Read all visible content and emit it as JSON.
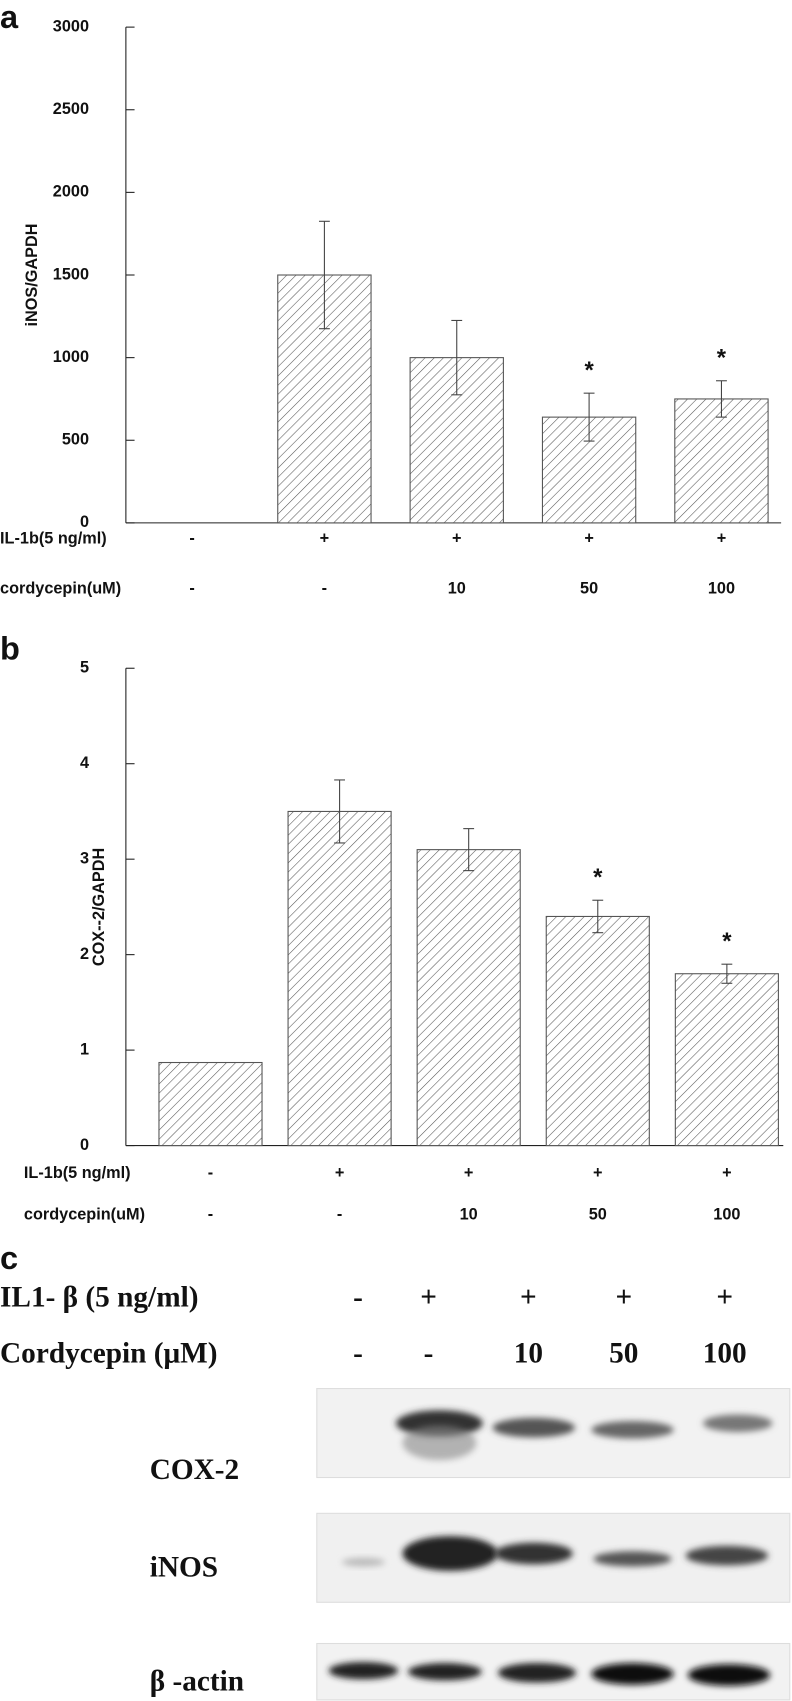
{
  "chart_data": [
    {
      "type": "bar",
      "panel": "a",
      "y_label": "iNOS/GAPDH",
      "values": [
        null,
        1500,
        1000,
        640,
        750
      ],
      "errors": [
        null,
        325,
        225,
        145,
        110
      ],
      "significance": [
        null,
        null,
        null,
        "*",
        "*"
      ],
      "color": "#555555",
      "ylim": [
        0,
        3000
      ],
      "yticks": [
        0,
        500,
        1000,
        1500,
        2000,
        2500,
        3000
      ],
      "treatment_rows": [
        {
          "label": "IL-1b(5 ng/ml)",
          "cells": [
            "-",
            "+",
            "+",
            "+",
            "+"
          ]
        },
        {
          "label": "cordycepin(uM)",
          "cells": [
            "-",
            "-",
            "10",
            "50",
            "100"
          ]
        }
      ]
    },
    {
      "type": "bar",
      "panel": "b",
      "y_label": "COX--2/GAPDH",
      "values": [
        0.87,
        3.5,
        3.1,
        2.4,
        1.8
      ],
      "errors": [
        null,
        0.33,
        0.22,
        0.17,
        0.1
      ],
      "significance": [
        null,
        null,
        null,
        "*",
        "*"
      ],
      "color": "#555555",
      "ylim": [
        0,
        5
      ],
      "yticks": [
        0,
        1,
        2,
        3,
        4,
        5
      ],
      "treatment_rows": [
        {
          "label": "IL-1b(5 ng/ml)",
          "cells": [
            "-",
            "+",
            "+",
            "+",
            "+"
          ]
        },
        {
          "label": "cordycepin(uM)",
          "cells": [
            "-",
            "-",
            "10",
            "50",
            "100"
          ]
        }
      ]
    }
  ],
  "panel_c": {
    "panel": "c",
    "treatment_rows": [
      {
        "label": "IL1- β (5 ng/ml)",
        "cells": [
          "-",
          "+",
          "+",
          "+",
          "+"
        ]
      },
      {
        "label": "Cordycepin (μM)",
        "cells": [
          "-",
          "-",
          "10",
          "50",
          "100"
        ]
      }
    ],
    "blots": [
      "COX-2",
      "iNOS",
      "β -actin"
    ]
  }
}
